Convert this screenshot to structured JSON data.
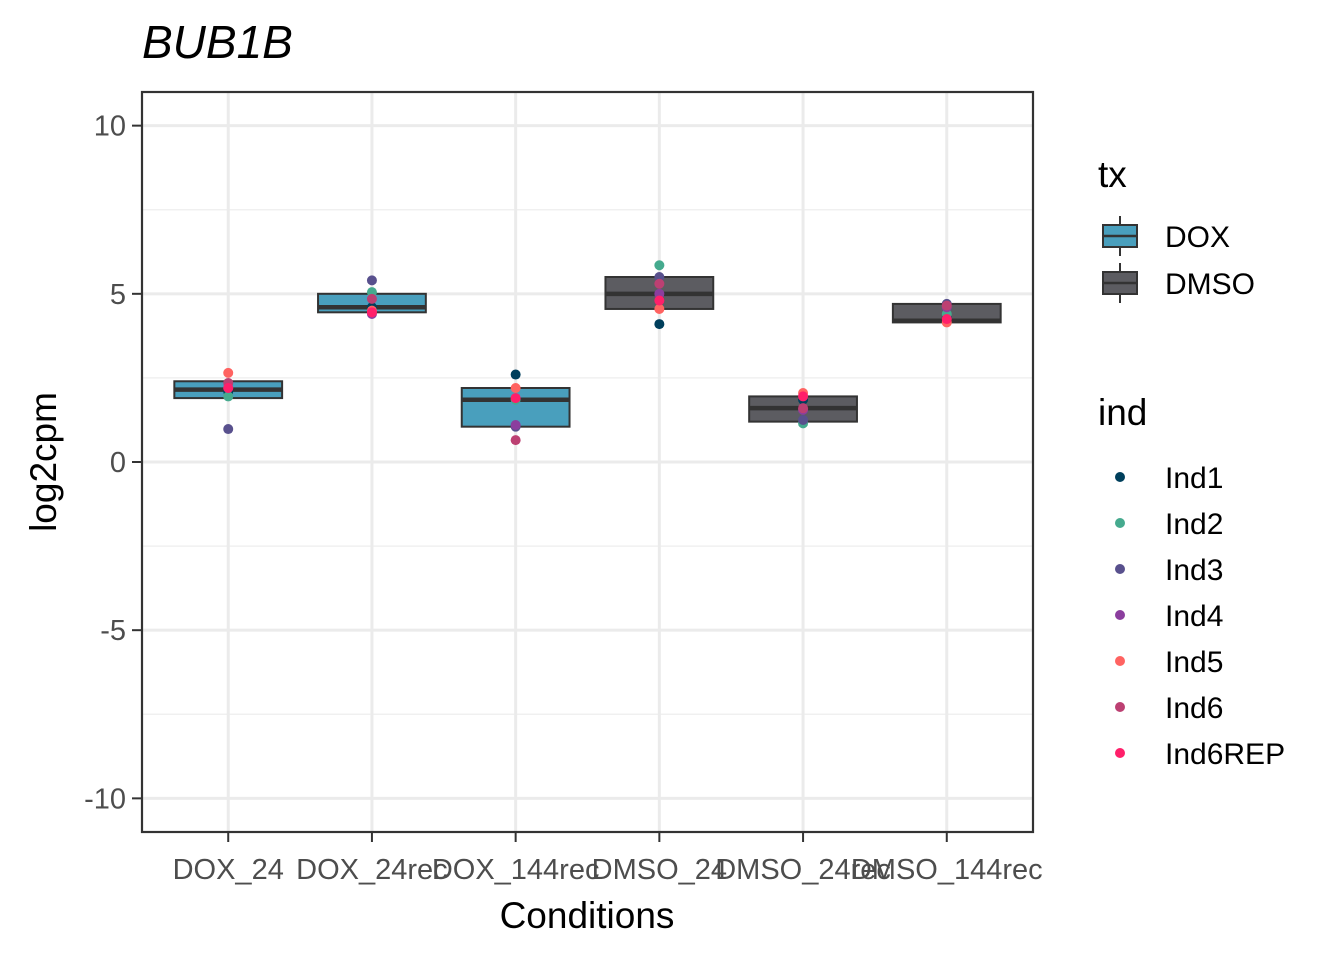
{
  "chart_data": {
    "type": "box",
    "title": "BUB1B",
    "xlabel": "Conditions",
    "ylabel": "log2cpm",
    "ylim": [
      -11,
      11
    ],
    "y_ticks": [
      10,
      5,
      0,
      -5,
      -10
    ],
    "y_tick_labels": [
      "10",
      "5",
      "0",
      "-5",
      "-10"
    ],
    "grid": true,
    "categories": [
      "DOX_24",
      "DOX_24rec",
      "DOX_144rec",
      "DMSO_24",
      "DMSO_24rec",
      "DMSO_144rec"
    ],
    "boxes": [
      {
        "category": "DOX_24",
        "tx": "DOX",
        "q1": 1.9,
        "median": 2.15,
        "q3": 2.4,
        "min": 1.9,
        "max": 2.4
      },
      {
        "category": "DOX_24rec",
        "tx": "DOX",
        "q1": 4.45,
        "median": 4.6,
        "q3": 5.0,
        "min": 4.45,
        "max": 5.0
      },
      {
        "category": "DOX_144rec",
        "tx": "DOX",
        "q1": 1.05,
        "median": 1.85,
        "q3": 2.2,
        "min": 1.05,
        "max": 2.2
      },
      {
        "category": "DMSO_24",
        "tx": "DMSO",
        "q1": 4.55,
        "median": 5.0,
        "q3": 5.5,
        "min": 4.55,
        "max": 5.5
      },
      {
        "category": "DMSO_24rec",
        "tx": "DMSO",
        "q1": 1.2,
        "median": 1.6,
        "q3": 1.95,
        "min": 1.2,
        "max": 1.95
      },
      {
        "category": "DMSO_144rec",
        "tx": "DMSO",
        "q1": 4.15,
        "median": 4.2,
        "q3": 4.7,
        "min": 4.15,
        "max": 4.7
      }
    ],
    "points": [
      {
        "category": "DOX_24",
        "ind": "Ind1",
        "y": 2.1
      },
      {
        "category": "DOX_24",
        "ind": "Ind2",
        "y": 1.95
      },
      {
        "category": "DOX_24",
        "ind": "Ind3",
        "y": 0.98
      },
      {
        "category": "DOX_24",
        "ind": "Ind4",
        "y": 2.2
      },
      {
        "category": "DOX_24",
        "ind": "Ind5",
        "y": 2.65
      },
      {
        "category": "DOX_24",
        "ind": "Ind6",
        "y": 2.35
      },
      {
        "category": "DOX_24",
        "ind": "Ind6REP",
        "y": 2.2
      },
      {
        "category": "DOX_24rec",
        "ind": "Ind1",
        "y": 4.6
      },
      {
        "category": "DOX_24rec",
        "ind": "Ind2",
        "y": 5.05
      },
      {
        "category": "DOX_24rec",
        "ind": "Ind3",
        "y": 5.4
      },
      {
        "category": "DOX_24rec",
        "ind": "Ind4",
        "y": 4.4
      },
      {
        "category": "DOX_24rec",
        "ind": "Ind5",
        "y": 4.5
      },
      {
        "category": "DOX_24rec",
        "ind": "Ind6",
        "y": 4.85
      },
      {
        "category": "DOX_24rec",
        "ind": "Ind6REP",
        "y": 4.45
      },
      {
        "category": "DOX_144rec",
        "ind": "Ind1",
        "y": 2.6
      },
      {
        "category": "DOX_144rec",
        "ind": "Ind2",
        "y": 1.85
      },
      {
        "category": "DOX_144rec",
        "ind": "Ind3",
        "y": 1.05
      },
      {
        "category": "DOX_144rec",
        "ind": "Ind4",
        "y": 1.1
      },
      {
        "category": "DOX_144rec",
        "ind": "Ind5",
        "y": 2.2
      },
      {
        "category": "DOX_144rec",
        "ind": "Ind6",
        "y": 0.65
      },
      {
        "category": "DOX_144rec",
        "ind": "Ind6REP",
        "y": 1.9
      },
      {
        "category": "DMSO_24",
        "ind": "Ind1",
        "y": 4.1
      },
      {
        "category": "DMSO_24",
        "ind": "Ind2",
        "y": 5.85
      },
      {
        "category": "DMSO_24",
        "ind": "Ind3",
        "y": 5.5
      },
      {
        "category": "DMSO_24",
        "ind": "Ind4",
        "y": 5.0
      },
      {
        "category": "DMSO_24",
        "ind": "Ind5",
        "y": 4.55
      },
      {
        "category": "DMSO_24",
        "ind": "Ind6",
        "y": 5.3
      },
      {
        "category": "DMSO_24",
        "ind": "Ind6REP",
        "y": 4.8
      },
      {
        "category": "DMSO_24rec",
        "ind": "Ind1",
        "y": 1.85
      },
      {
        "category": "DMSO_24rec",
        "ind": "Ind2",
        "y": 1.15
      },
      {
        "category": "DMSO_24rec",
        "ind": "Ind3",
        "y": 1.25
      },
      {
        "category": "DMSO_24rec",
        "ind": "Ind4",
        "y": 1.55
      },
      {
        "category": "DMSO_24rec",
        "ind": "Ind5",
        "y": 2.05
      },
      {
        "category": "DMSO_24rec",
        "ind": "Ind6",
        "y": 1.6
      },
      {
        "category": "DMSO_24rec",
        "ind": "Ind6REP",
        "y": 1.95
      },
      {
        "category": "DMSO_144rec",
        "ind": "Ind1",
        "y": 4.3
      },
      {
        "category": "DMSO_144rec",
        "ind": "Ind2",
        "y": 4.4
      },
      {
        "category": "DMSO_144rec",
        "ind": "Ind3",
        "y": 4.7
      },
      {
        "category": "DMSO_144rec",
        "ind": "Ind4",
        "y": 4.6
      },
      {
        "category": "DMSO_144rec",
        "ind": "Ind5",
        "y": 4.15
      },
      {
        "category": "DMSO_144rec",
        "ind": "Ind6",
        "y": 4.65
      },
      {
        "category": "DMSO_144rec",
        "ind": "Ind6REP",
        "y": 4.25
      }
    ],
    "legend": {
      "placement": "right",
      "tx": {
        "title": "tx",
        "entries": [
          {
            "label": "DOX",
            "color": "#499fbd"
          },
          {
            "label": "DMSO",
            "color": "#5c5c61"
          }
        ]
      },
      "ind": {
        "title": "ind",
        "entries": [
          {
            "label": "Ind1",
            "color": "#003f5c"
          },
          {
            "label": "Ind2",
            "color": "#45aa8e"
          },
          {
            "label": "Ind3",
            "color": "#58508d"
          },
          {
            "label": "Ind4",
            "color": "#8b3e9e"
          },
          {
            "label": "Ind5",
            "color": "#ff6361"
          },
          {
            "label": "Ind6",
            "color": "#bc4072"
          },
          {
            "label": "Ind6REP",
            "color": "#ff1f6a"
          }
        ]
      }
    }
  }
}
